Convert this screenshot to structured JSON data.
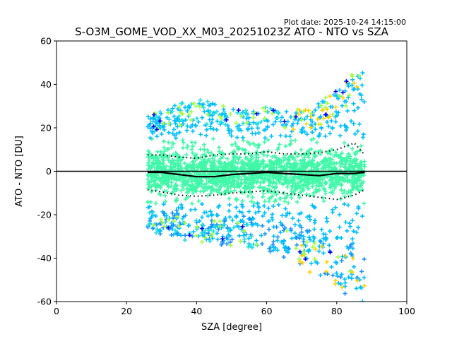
{
  "plot_date": "Plot date: 2025-10-24 14:15:00",
  "chart_data": {
    "type": "scatter",
    "title": "S-O3M_GOME_VOD_XX_M03_20251023Z ATO - NTO vs SZA",
    "xlabel": "SZA [degree]",
    "ylabel": "ATO - NTO [DU]",
    "xlim": [
      0,
      100
    ],
    "ylim": [
      -60,
      60
    ],
    "xticks": [
      0,
      20,
      40,
      60,
      80,
      100
    ],
    "yticks": [
      -60,
      -40,
      -20,
      0,
      20,
      40,
      60
    ],
    "grid": false,
    "marker": "+",
    "colors": {
      "dense": "#40f8a8",
      "mid": "#00bfff",
      "low": "#1e90ff",
      "sparse_yellow": "#ffd000",
      "sparse_green": "#a0ff40",
      "sparse_cyan": "#20e0e0",
      "outlier_blue": "#0000ee",
      "stats": "#000000"
    },
    "sza_range": [
      26,
      88
    ],
    "envelope": {
      "x": [
        26,
        30,
        35,
        40,
        45,
        50,
        55,
        60,
        65,
        70,
        75,
        80,
        84,
        87
      ],
      "upper": [
        24,
        27,
        30,
        32,
        30,
        28,
        28,
        28,
        27,
        27,
        30,
        38,
        45,
        47
      ],
      "lower": [
        -26,
        -28,
        -30,
        -31,
        -32,
        -33,
        -34,
        -36,
        -38,
        -42,
        -48,
        -52,
        -55,
        -60
      ]
    },
    "mean_line": {
      "x": [
        26,
        30,
        35,
        40,
        45,
        50,
        55,
        60,
        65,
        70,
        75,
        80,
        85,
        88
      ],
      "y": [
        -0.5,
        -0.5,
        -1.5,
        -2.5,
        -2.5,
        -1.5,
        -1.0,
        -0.5,
        -1.0,
        -1.5,
        -2.0,
        -1.0,
        -1.0,
        -0.5
      ]
    },
    "upper_std_line": {
      "x": [
        26,
        30,
        35,
        40,
        45,
        50,
        55,
        60,
        65,
        70,
        75,
        80,
        85,
        88
      ],
      "y": [
        7.5,
        7.5,
        6.5,
        6,
        7.5,
        8,
        8,
        9,
        8,
        8,
        8.5,
        10,
        13,
        7.5
      ]
    },
    "lower_std_line": {
      "x": [
        26,
        30,
        35,
        40,
        45,
        50,
        55,
        60,
        65,
        70,
        75,
        80,
        85,
        88
      ],
      "y": [
        -8.5,
        -9.5,
        -11,
        -11.5,
        -11,
        -10,
        -9.5,
        -9,
        -10,
        -11,
        -12,
        -13,
        -11,
        -8.5
      ]
    },
    "zero_line": 0
  }
}
